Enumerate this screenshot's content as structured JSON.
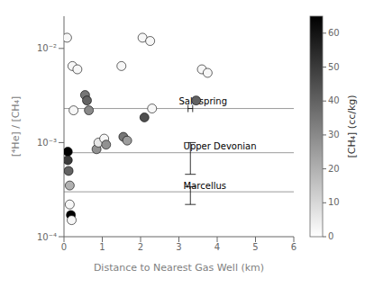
{
  "chart_data": {
    "type": "scatter",
    "x_label": "Distance to Nearest Gas Well (km)",
    "y_label": "[⁴He] / [CH₄]",
    "log": "y",
    "xlim": [
      0,
      6
    ],
    "xticks": [
      0,
      1,
      2,
      3,
      4,
      5,
      6
    ],
    "ylim": [
      0.0001,
      0.022
    ],
    "yticks": [
      {
        "value": 0.0001,
        "label": "10⁻⁴"
      },
      {
        "value": 0.001,
        "label": "10⁻³"
      },
      {
        "value": 0.01,
        "label": "10⁻²"
      }
    ],
    "points": [
      {
        "x": 0.08,
        "y": 0.013,
        "ch4": 2
      },
      {
        "x": 0.22,
        "y": 0.0065,
        "ch4": 2
      },
      {
        "x": 0.35,
        "y": 0.006,
        "ch4": 2
      },
      {
        "x": 0.55,
        "y": 0.0032,
        "ch4": 35
      },
      {
        "x": 0.6,
        "y": 0.0028,
        "ch4": 40
      },
      {
        "x": 0.65,
        "y": 0.0022,
        "ch4": 30
      },
      {
        "x": 0.25,
        "y": 0.0022,
        "ch4": 2
      },
      {
        "x": 0.1,
        "y": 0.0008,
        "ch4": 65
      },
      {
        "x": 0.1,
        "y": 0.00065,
        "ch4": 50
      },
      {
        "x": 0.12,
        "y": 0.0005,
        "ch4": 40
      },
      {
        "x": 0.15,
        "y": 0.00035,
        "ch4": 20
      },
      {
        "x": 0.15,
        "y": 0.00022,
        "ch4": 2
      },
      {
        "x": 0.18,
        "y": 0.00017,
        "ch4": 65
      },
      {
        "x": 0.2,
        "y": 0.00015,
        "ch4": 2
      },
      {
        "x": 0.85,
        "y": 0.00085,
        "ch4": 28
      },
      {
        "x": 0.9,
        "y": 0.001,
        "ch4": 6
      },
      {
        "x": 1.05,
        "y": 0.0011,
        "ch4": 2
      },
      {
        "x": 1.1,
        "y": 0.00095,
        "ch4": 28
      },
      {
        "x": 1.5,
        "y": 0.0065,
        "ch4": 2
      },
      {
        "x": 1.55,
        "y": 0.00115,
        "ch4": 35
      },
      {
        "x": 1.65,
        "y": 0.00105,
        "ch4": 25
      },
      {
        "x": 2.05,
        "y": 0.013,
        "ch4": 2
      },
      {
        "x": 2.25,
        "y": 0.012,
        "ch4": 2
      },
      {
        "x": 2.1,
        "y": 0.00185,
        "ch4": 45
      },
      {
        "x": 2.3,
        "y": 0.0023,
        "ch4": 2
      },
      {
        "x": 3.45,
        "y": 0.0028,
        "ch4": 40
      },
      {
        "x": 3.6,
        "y": 0.006,
        "ch4": 2
      },
      {
        "x": 3.75,
        "y": 0.0055,
        "ch4": 2
      }
    ],
    "reference_lines": [
      {
        "y": 0.0023,
        "label": "Salt spring",
        "label_x": 3.0,
        "label_y": 0.00255
      },
      {
        "y": 0.00078,
        "label": "Upper Devonian",
        "label_x": 3.12,
        "label_y": 0.00085
      },
      {
        "y": 0.0003,
        "label": "Marcellus",
        "label_x": 3.12,
        "label_y": 0.00032
      }
    ],
    "error_bars": [
      {
        "x": 3.3,
        "y": 0.00078,
        "yerr_lo": 0.00032,
        "yerr_hi": 0.00022
      },
      {
        "x": 3.3,
        "y": 0.0003,
        "yerr_lo": 8e-05,
        "yerr_hi": 4e-05
      }
    ],
    "x_error_bars": [
      {
        "x": 3.3,
        "y": 0.0023,
        "xerr": 0.06
      }
    ],
    "colorbar": {
      "label": "[CH₄] (cc/kg)",
      "range": [
        0,
        65
      ],
      "ticks": [
        0,
        10,
        20,
        30,
        40,
        50,
        60
      ]
    }
  }
}
